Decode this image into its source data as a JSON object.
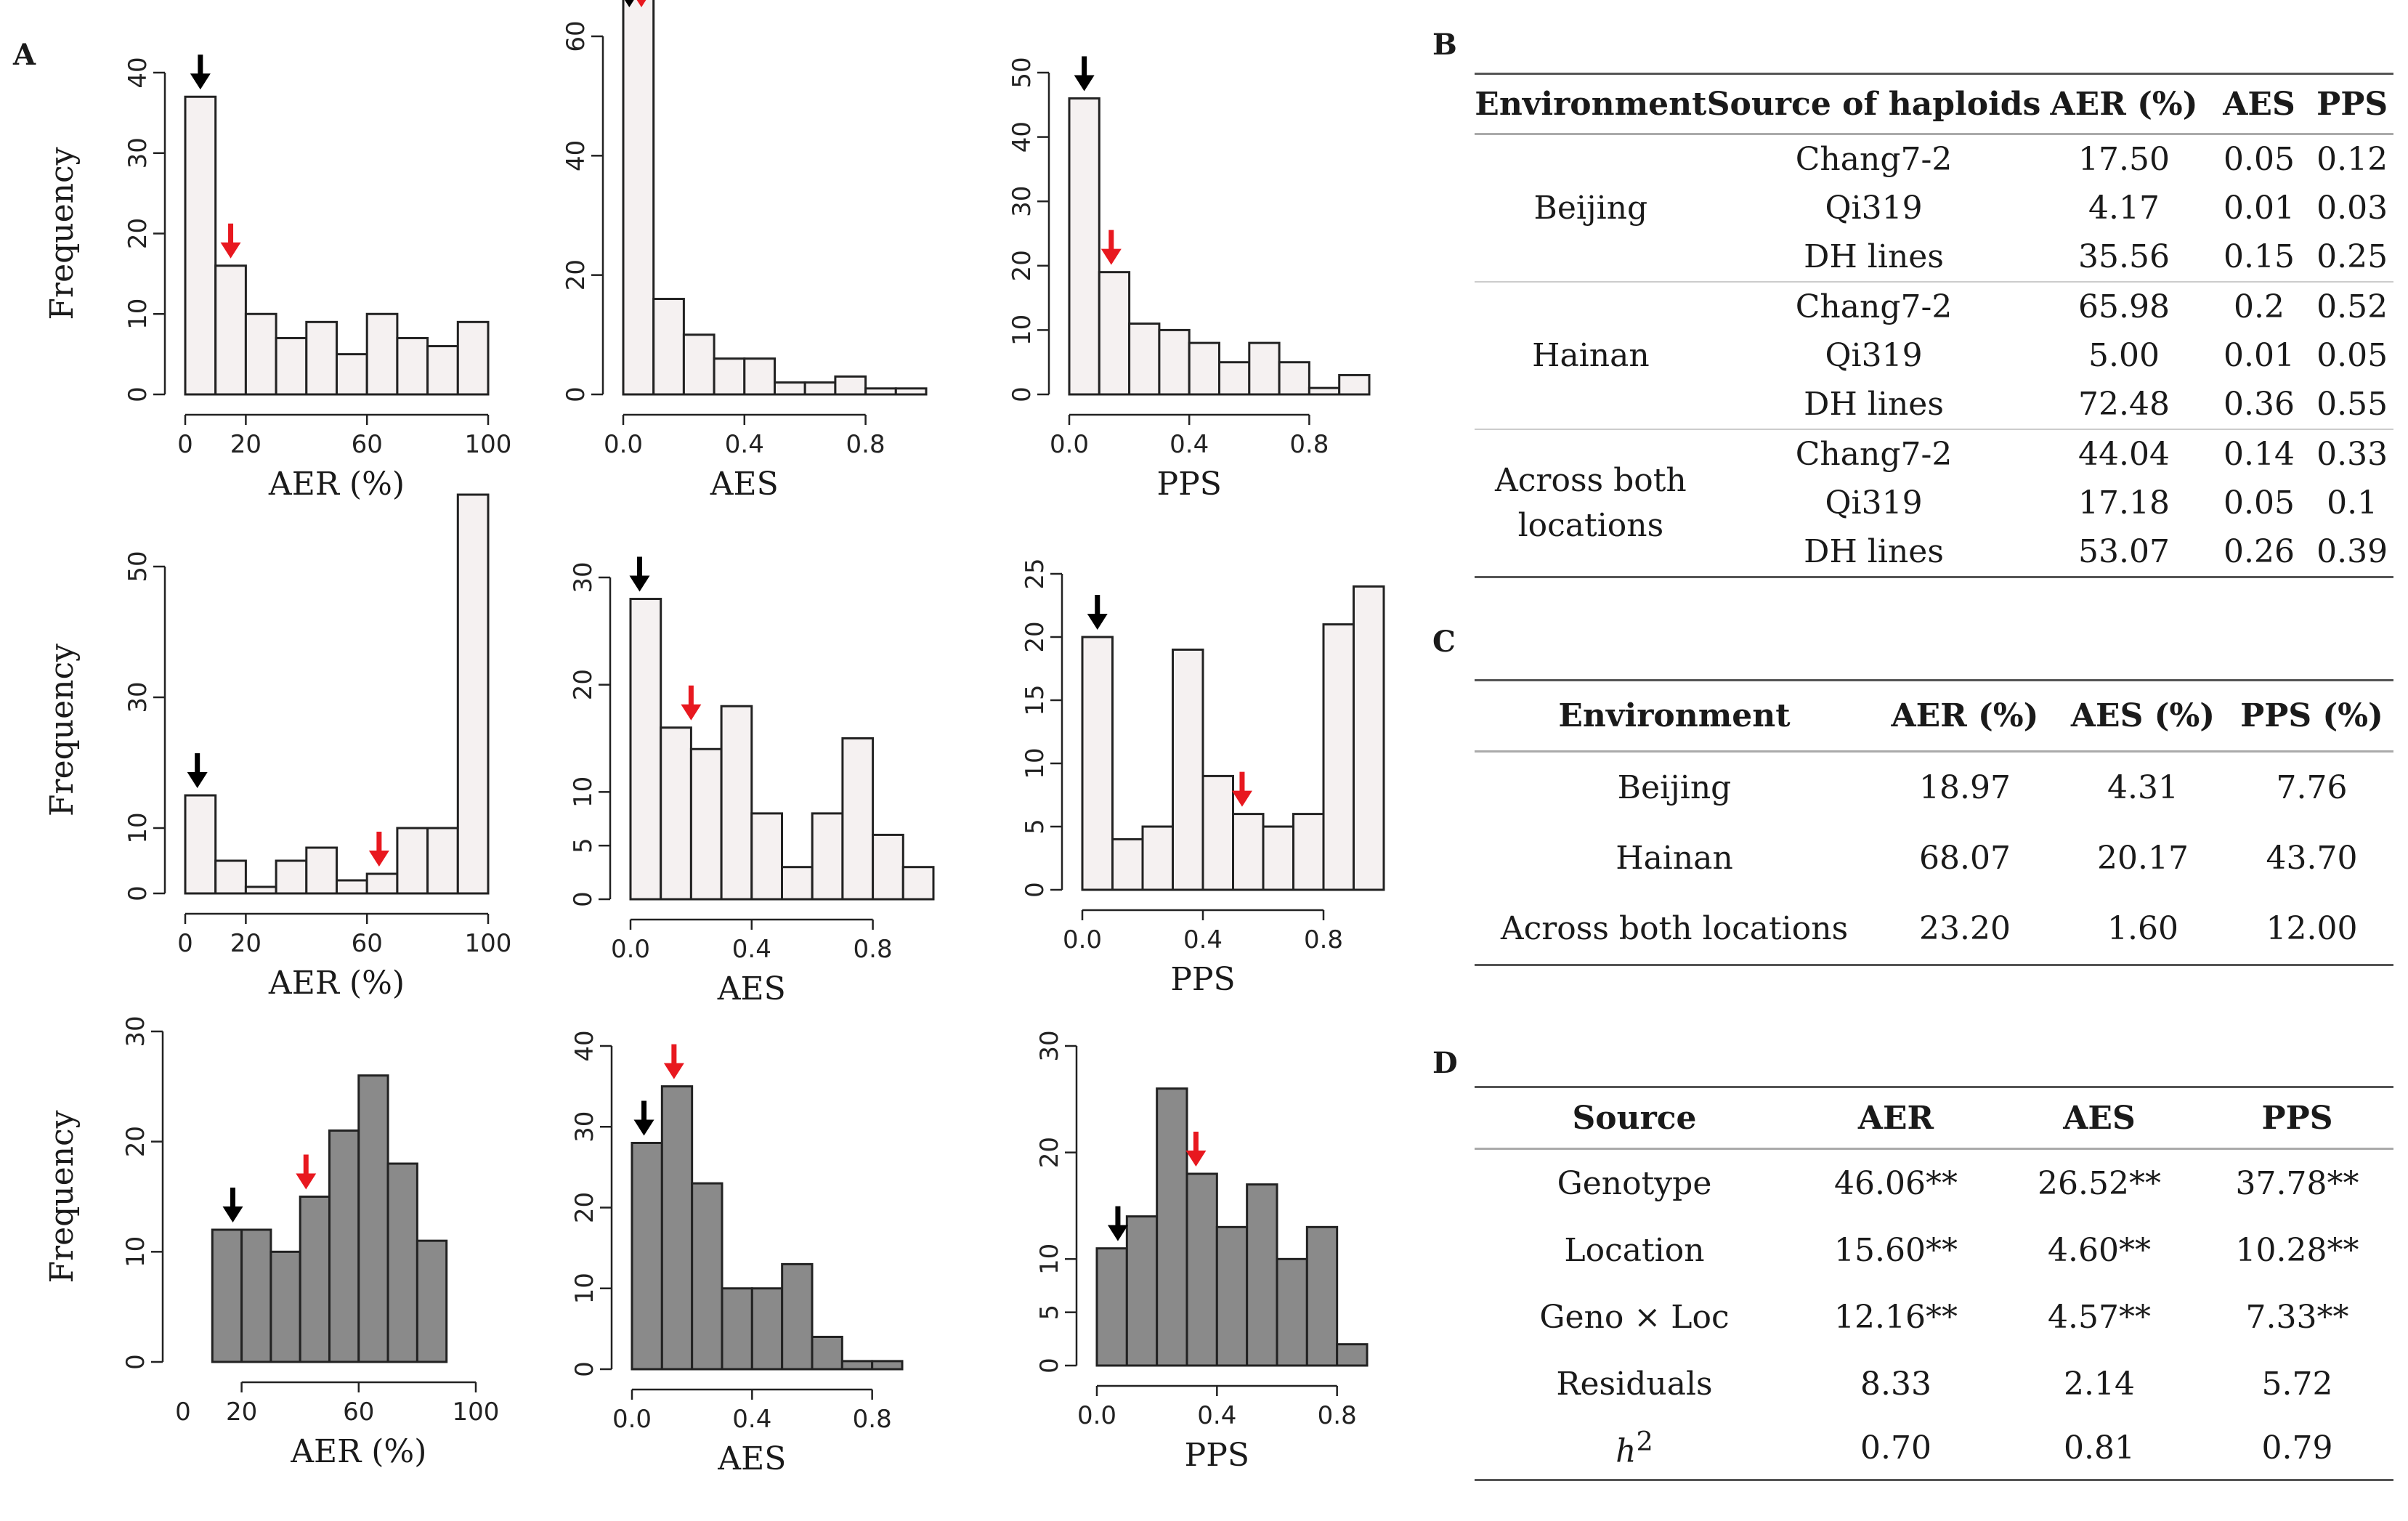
{
  "panel_labels": {
    "a": "A",
    "b": "B",
    "c": "C",
    "d": "D"
  },
  "colors": {
    "light_bar": "#f5f1f1",
    "dark_bar": "#8a8a8a",
    "arrow_black": "#000000",
    "arrow_red": "#e8181f"
  },
  "chart_data": [
    {
      "type": "bar",
      "xlabel": "AER (%)",
      "ylabel": "Frequency",
      "xlim": [
        0,
        100
      ],
      "ylim": [
        0,
        40
      ],
      "xticks": [
        0,
        20,
        60,
        100
      ],
      "yticks": [
        0,
        10,
        20,
        30,
        40
      ],
      "bin_edges": [
        0,
        10,
        20,
        30,
        40,
        50,
        60,
        70,
        80,
        90,
        100
      ],
      "values": [
        37,
        16,
        10,
        7,
        9,
        5,
        10,
        7,
        6,
        9
      ],
      "arrows": {
        "black": 5,
        "red": 15
      }
    },
    {
      "type": "bar",
      "xlabel": "AES",
      "ylabel": "",
      "xlim": [
        0,
        1
      ],
      "ylim": [
        0,
        60
      ],
      "xticks": [
        0.0,
        0.4,
        0.8
      ],
      "yticks": [
        0,
        20,
        40,
        60
      ],
      "bin_edges": [
        0,
        0.1,
        0.2,
        0.3,
        0.4,
        0.5,
        0.6,
        0.7,
        0.8,
        0.9,
        1.0
      ],
      "values": [
        69,
        16,
        10,
        6,
        6,
        2,
        2,
        3,
        1,
        1
      ],
      "arrows": {
        "black": 0.02,
        "red": 0.06
      }
    },
    {
      "type": "bar",
      "xlabel": "PPS",
      "ylabel": "",
      "xlim": [
        0,
        1
      ],
      "ylim": [
        0,
        50
      ],
      "xticks": [
        0.0,
        0.4,
        0.8
      ],
      "yticks": [
        0,
        10,
        20,
        30,
        40,
        50
      ],
      "bin_edges": [
        0,
        0.1,
        0.2,
        0.3,
        0.4,
        0.5,
        0.6,
        0.7,
        0.8,
        0.9,
        1.0
      ],
      "values": [
        46,
        19,
        11,
        10,
        8,
        5,
        8,
        5,
        1,
        3
      ],
      "arrows": {
        "black": 0.05,
        "red": 0.14
      }
    },
    {
      "type": "bar",
      "xlabel": "AER (%)",
      "ylabel": "Frequency",
      "xlim": [
        0,
        100
      ],
      "ylim": [
        0,
        50
      ],
      "xticks": [
        0,
        20,
        60,
        100
      ],
      "yticks": [
        0,
        10,
        30,
        50
      ],
      "bin_edges": [
        0,
        10,
        20,
        30,
        40,
        50,
        60,
        70,
        80,
        90,
        100
      ],
      "values": [
        15,
        5,
        1,
        5,
        7,
        2,
        3,
        10,
        10,
        61
      ],
      "arrows": {
        "black": 4,
        "red": 64
      }
    },
    {
      "type": "bar",
      "xlabel": "AES",
      "ylabel": "",
      "xlim": [
        0,
        1
      ],
      "ylim": [
        0,
        30
      ],
      "xticks": [
        0.0,
        0.4,
        0.8
      ],
      "yticks": [
        0,
        5,
        10,
        20,
        30
      ],
      "bin_edges": [
        0,
        0.1,
        0.2,
        0.3,
        0.4,
        0.5,
        0.6,
        0.7,
        0.8,
        0.9,
        1.0
      ],
      "values": [
        28,
        16,
        14,
        18,
        8,
        3,
        8,
        15,
        6,
        3
      ],
      "arrows": {
        "black": 0.03,
        "red": 0.2
      }
    },
    {
      "type": "bar",
      "xlabel": "PPS",
      "ylabel": "",
      "xlim": [
        0,
        1
      ],
      "ylim": [
        0,
        25
      ],
      "xticks": [
        0.0,
        0.4,
        0.8
      ],
      "yticks": [
        0,
        5,
        10,
        15,
        20,
        25
      ],
      "bin_edges": [
        0,
        0.1,
        0.2,
        0.3,
        0.4,
        0.5,
        0.6,
        0.7,
        0.8,
        0.9,
        1.0
      ],
      "values": [
        20,
        4,
        5,
        19,
        9,
        6,
        5,
        6,
        21,
        24
      ],
      "arrows": {
        "black": 0.05,
        "red": 0.53
      }
    },
    {
      "type": "bar",
      "xlabel": "AER (%)",
      "ylabel": "Frequency",
      "xlim": [
        0,
        100
      ],
      "ylim": [
        0,
        30
      ],
      "xticks": [
        20,
        60,
        100
      ],
      "extra_tick_label": "0",
      "yticks": [
        0,
        10,
        20,
        30
      ],
      "bin_edges": [
        10,
        20,
        30,
        40,
        50,
        60,
        70,
        80,
        90
      ],
      "values": [
        12,
        12,
        10,
        15,
        21,
        26,
        18,
        11
      ],
      "arrows": {
        "black": 17,
        "red": 42
      }
    },
    {
      "type": "bar",
      "xlabel": "AES",
      "ylabel": "",
      "xlim": [
        0,
        0.9
      ],
      "ylim": [
        0,
        40
      ],
      "xticks": [
        0.0,
        0.4,
        0.8
      ],
      "yticks": [
        0,
        10,
        20,
        30,
        40
      ],
      "bin_edges": [
        0,
        0.1,
        0.2,
        0.3,
        0.4,
        0.5,
        0.6,
        0.7,
        0.8,
        0.9
      ],
      "values": [
        28,
        35,
        23,
        10,
        10,
        13,
        4,
        1,
        1
      ],
      "arrows": {
        "black": 0.04,
        "red": 0.14
      }
    },
    {
      "type": "bar",
      "xlabel": "PPS",
      "ylabel": "",
      "xlim": [
        0,
        0.9
      ],
      "ylim": [
        0,
        30
      ],
      "xticks": [
        0.0,
        0.4,
        0.8
      ],
      "yticks": [
        0,
        5,
        10,
        20,
        30
      ],
      "bin_edges": [
        0,
        0.1,
        0.2,
        0.3,
        0.4,
        0.5,
        0.6,
        0.7,
        0.8,
        0.9
      ],
      "values": [
        11,
        14,
        26,
        18,
        13,
        17,
        10,
        13,
        2
      ],
      "arrows": {
        "black": 0.07,
        "red": 0.33
      }
    }
  ],
  "tableB": {
    "headers": [
      "Environment",
      "Source of  haploids",
      "AER (%)",
      "AES",
      "PPS"
    ],
    "groups": [
      {
        "environment": "Beijing",
        "rows": [
          {
            "source": "Chang7-2",
            "aer": "17.50",
            "aes": "0.05",
            "pps": "0.12"
          },
          {
            "source": "Qi319",
            "aer": "4.17",
            "aes": "0.01",
            "pps": "0.03"
          },
          {
            "source": "DH lines",
            "aer": "35.56",
            "aes": "0.15",
            "pps": "0.25"
          }
        ]
      },
      {
        "environment": "Hainan",
        "rows": [
          {
            "source": "Chang7-2",
            "aer": "65.98",
            "aes": "0.2",
            "pps": "0.52"
          },
          {
            "source": "Qi319",
            "aer": "5.00",
            "aes": "0.01",
            "pps": "0.05"
          },
          {
            "source": "DH lines",
            "aer": "72.48",
            "aes": "0.36",
            "pps": "0.55"
          }
        ]
      },
      {
        "environment_line1": "Across both",
        "environment_line2": "locations",
        "rows": [
          {
            "source": "Chang7-2",
            "aer": "44.04",
            "aes": "0.14",
            "pps": "0.33"
          },
          {
            "source": "Qi319",
            "aer": "17.18",
            "aes": "0.05",
            "pps": "0.1"
          },
          {
            "source": "DH lines",
            "aer": "53.07",
            "aes": "0.26",
            "pps": "0.39"
          }
        ]
      }
    ]
  },
  "tableC": {
    "headers": [
      "Environment",
      "AER (%)",
      "AES (%)",
      "PPS (%)"
    ],
    "rows": [
      {
        "env": "Beijing",
        "aer": "18.97",
        "aes": "4.31",
        "pps": "7.76"
      },
      {
        "env": "Hainan",
        "aer": "68.07",
        "aes": "20.17",
        "pps": "43.70"
      },
      {
        "env": "Across both locations",
        "aer": "23.20",
        "aes": "1.60",
        "pps": "12.00"
      }
    ]
  },
  "tableD": {
    "headers": [
      "Source",
      "AER",
      "AES",
      "PPS"
    ],
    "rows": [
      {
        "source": "Genotype",
        "aer": "46.06**",
        "aes": "26.52**",
        "pps": "37.78**"
      },
      {
        "source": "Location",
        "aer": "15.60**",
        "aes": "4.60**",
        "pps": "10.28**"
      },
      {
        "source": "Geno × Loc",
        "aer": "12.16**",
        "aes": "4.57**",
        "pps": "7.33**"
      },
      {
        "source": "Residuals",
        "aer": "8.33",
        "aes": "2.14",
        "pps": "5.72"
      }
    ],
    "h2_row": {
      "symbol": "h",
      "superscript": "2",
      "aer": "0.70",
      "aes": "0.81",
      "pps": "0.79"
    }
  }
}
